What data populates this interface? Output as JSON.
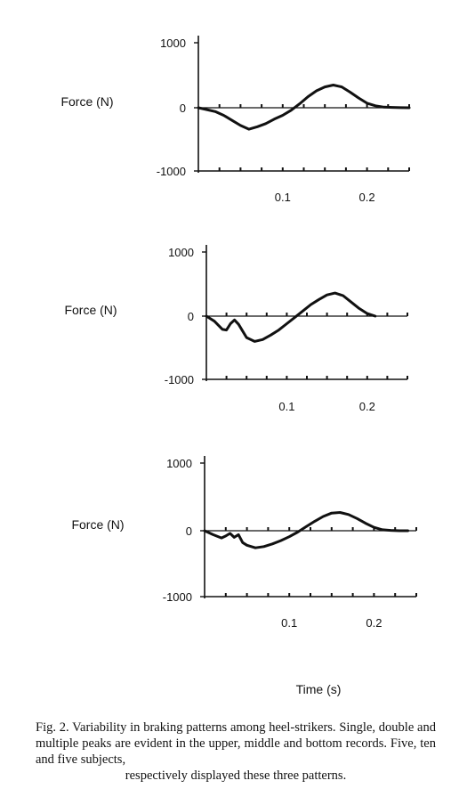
{
  "chart_data": [
    {
      "type": "line",
      "ylabel": "Force (N)",
      "yticks": [
        "1000",
        "0",
        "-1000"
      ],
      "xticks": [
        "0.1",
        "0.2"
      ],
      "ylim": [
        -1000,
        1000
      ],
      "xlim": [
        0,
        0.25
      ],
      "grid": false,
      "series": [
        {
          "x": [
            0,
            0.01,
            0.02,
            0.03,
            0.04,
            0.05,
            0.06,
            0.07,
            0.08,
            0.09,
            0.1,
            0.11,
            0.12,
            0.13,
            0.14,
            0.15,
            0.16,
            0.17,
            0.18,
            0.19,
            0.2,
            0.21,
            0.22,
            0.23,
            0.24,
            0.25
          ],
          "y": [
            0,
            -30,
            -60,
            -120,
            -200,
            -280,
            -340,
            -300,
            -250,
            -180,
            -120,
            -40,
            60,
            170,
            260,
            320,
            350,
            320,
            240,
            150,
            70,
            30,
            10,
            5,
            2,
            0
          ]
        }
      ]
    },
    {
      "type": "line",
      "ylabel": "Force (N)",
      "yticks": [
        "1000",
        "0",
        "-1000"
      ],
      "xticks": [
        "0.1",
        "0.2"
      ],
      "ylim": [
        -1000,
        1000
      ],
      "xlim": [
        0,
        0.25
      ],
      "grid": false,
      "series": [
        {
          "x": [
            0,
            0.01,
            0.02,
            0.025,
            0.03,
            0.035,
            0.04,
            0.05,
            0.06,
            0.07,
            0.08,
            0.09,
            0.1,
            0.11,
            0.12,
            0.13,
            0.14,
            0.15,
            0.16,
            0.17,
            0.18,
            0.19,
            0.2,
            0.21
          ],
          "y": [
            0,
            -80,
            -210,
            -220,
            -120,
            -60,
            -130,
            -340,
            -400,
            -370,
            -300,
            -220,
            -120,
            -20,
            80,
            180,
            260,
            330,
            360,
            320,
            220,
            120,
            40,
            0
          ]
        }
      ]
    },
    {
      "type": "line",
      "ylabel": "Force (N)",
      "yticks": [
        "1000",
        "0",
        "-1000"
      ],
      "xticks": [
        "0.1",
        "0.2"
      ],
      "ylim": [
        -1000,
        1000
      ],
      "xlim": [
        0,
        0.25
      ],
      "grid": false,
      "series": [
        {
          "x": [
            0,
            0.01,
            0.02,
            0.025,
            0.03,
            0.035,
            0.04,
            0.045,
            0.05,
            0.06,
            0.07,
            0.08,
            0.09,
            0.1,
            0.11,
            0.12,
            0.13,
            0.14,
            0.15,
            0.16,
            0.17,
            0.18,
            0.19,
            0.2,
            0.21,
            0.22,
            0.23,
            0.24
          ],
          "y": [
            0,
            -60,
            -110,
            -80,
            -40,
            -100,
            -60,
            -180,
            -220,
            -260,
            -240,
            -200,
            -150,
            -90,
            -20,
            60,
            140,
            210,
            260,
            270,
            240,
            180,
            110,
            50,
            15,
            5,
            0,
            0
          ]
        }
      ]
    }
  ],
  "x_axis_title": "Time (s)",
  "caption": {
    "body": "Fig. 2. Variability in braking patterns among heel-strikers. Single, double and multiple peaks are evident in the upper, middle and bottom records. Five, ten and five subjects,",
    "last_line": "respectively displayed these three patterns."
  }
}
